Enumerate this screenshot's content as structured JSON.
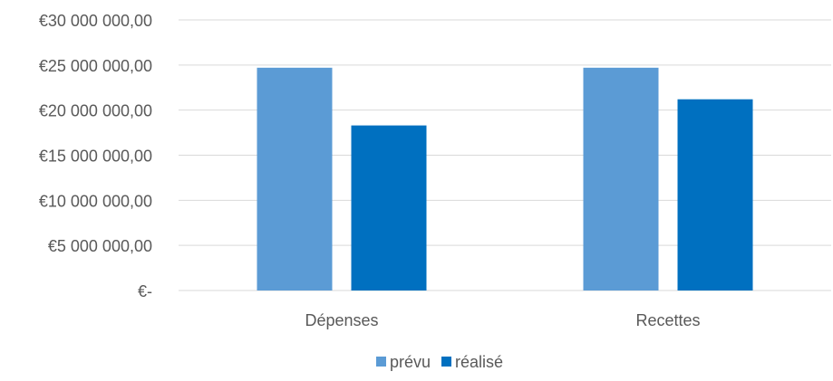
{
  "chart_data": {
    "type": "bar",
    "title": "",
    "xlabel": "",
    "ylabel": "",
    "categories": [
      "Dépenses",
      "Recettes"
    ],
    "series": [
      {
        "name": "prévu",
        "values": [
          24700000,
          24700000
        ],
        "color": "#5b9bd5"
      },
      {
        "name": "réalisé",
        "values": [
          18300000,
          21200000
        ],
        "color": "#0070c0"
      }
    ],
    "ylim": [
      0,
      30000000
    ],
    "yticks": [
      0,
      5000000,
      10000000,
      15000000,
      20000000,
      25000000,
      30000000
    ],
    "ytick_labels": [
      "€-",
      "€5 000 000,00",
      "€10 000 000,00",
      "€15 000 000,00",
      "€20 000 000,00",
      "€25 000 000,00",
      "€30 000 000,00"
    ],
    "grid": true,
    "gridline_color": "#d9d9d9",
    "legend_position": "bottom"
  }
}
